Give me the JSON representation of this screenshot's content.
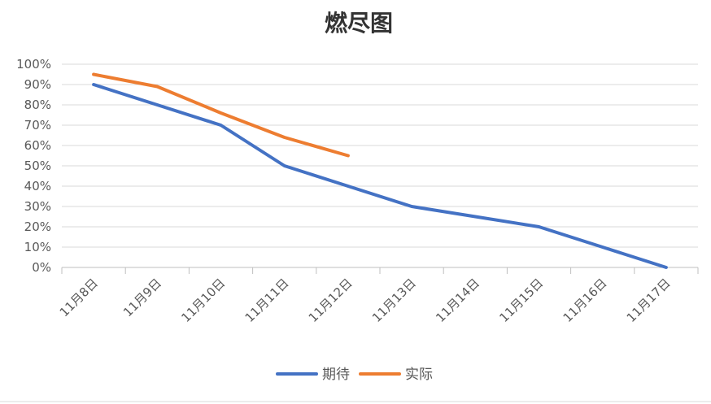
{
  "chart_data": {
    "type": "line",
    "title": "燃尽图",
    "categories": [
      "11月8日",
      "11月9日",
      "11月10日",
      "11月11日",
      "11月12日",
      "11月13日",
      "11月14日",
      "11月15日",
      "11月16日",
      "11月17日"
    ],
    "y_tick_labels": [
      "0%",
      "10%",
      "20%",
      "30%",
      "40%",
      "50%",
      "60%",
      "70%",
      "80%",
      "90%",
      "100%"
    ],
    "ylim": [
      0,
      100
    ],
    "y_unit": "%",
    "grid": true,
    "legend_position": "bottom",
    "series": [
      {
        "name": "期待",
        "color": "#4472c4",
        "values": [
          90,
          80,
          70,
          50,
          40,
          30,
          25,
          20,
          10,
          0
        ]
      },
      {
        "name": "实际",
        "color": "#ed7d31",
        "values": [
          95,
          89,
          76,
          64,
          55,
          null,
          null,
          null,
          null,
          null
        ]
      }
    ]
  }
}
